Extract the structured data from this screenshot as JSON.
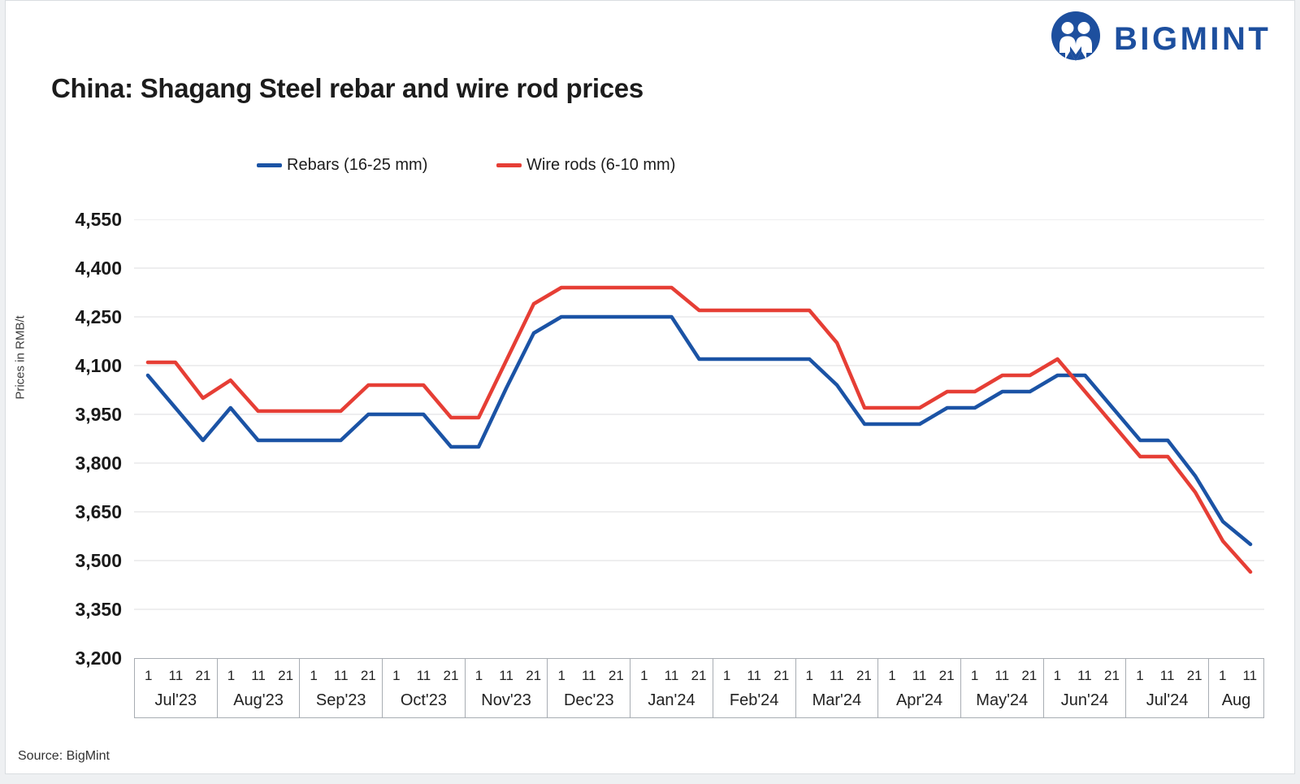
{
  "logo": {
    "text": "BIGMINT",
    "color": "#1d4f9e"
  },
  "title": "China: Shagang Steel rebar and wire rod prices",
  "legend": [
    {
      "label": "Rebars (16-25 mm)",
      "color": "#1b53a5"
    },
    {
      "label": "Wire rods (6-10 mm)",
      "color": "#e63e35"
    }
  ],
  "y_axis": {
    "title": "Prices in RMB/t",
    "tick_labels": [
      "4,550",
      "4,400",
      "4,250",
      "4,100",
      "3,950",
      "3,800",
      "3,650",
      "3,500",
      "3,350",
      "3,200"
    ]
  },
  "source": "Source: BigMint",
  "chart_data": {
    "type": "line",
    "unit": "RMB/t",
    "ylim": [
      3200,
      4550
    ],
    "y_step": 150,
    "grid": true,
    "legend_position": "top",
    "months": [
      {
        "label": "Jul'23",
        "ticks": [
          "1",
          "11",
          "21"
        ]
      },
      {
        "label": "Aug'23",
        "ticks": [
          "1",
          "11",
          "21"
        ]
      },
      {
        "label": "Sep'23",
        "ticks": [
          "1",
          "11",
          "21"
        ]
      },
      {
        "label": "Oct'23",
        "ticks": [
          "1",
          "11",
          "21"
        ]
      },
      {
        "label": "Nov'23",
        "ticks": [
          "1",
          "11",
          "21"
        ]
      },
      {
        "label": "Dec'23",
        "ticks": [
          "1",
          "11",
          "21"
        ]
      },
      {
        "label": "Jan'24",
        "ticks": [
          "1",
          "11",
          "21"
        ]
      },
      {
        "label": "Feb'24",
        "ticks": [
          "1",
          "11",
          "21"
        ]
      },
      {
        "label": "Mar'24",
        "ticks": [
          "1",
          "11",
          "21"
        ]
      },
      {
        "label": "Apr'24",
        "ticks": [
          "1",
          "11",
          "21"
        ]
      },
      {
        "label": "May'24",
        "ticks": [
          "1",
          "11",
          "21"
        ]
      },
      {
        "label": "Jun'24",
        "ticks": [
          "1",
          "11",
          "21"
        ]
      },
      {
        "label": "Jul'24",
        "ticks": [
          "1",
          "11",
          "21"
        ]
      },
      {
        "label": "Aug",
        "ticks": [
          "1",
          "11"
        ]
      }
    ],
    "series": [
      {
        "name": "Rebars (16-25 mm)",
        "color": "#1b53a5",
        "values": [
          4070,
          3970,
          3870,
          3970,
          3870,
          3870,
          3870,
          3870,
          3950,
          3950,
          3950,
          3850,
          3850,
          4030,
          4200,
          4250,
          4250,
          4250,
          4250,
          4250,
          4120,
          4120,
          4120,
          4120,
          4120,
          4040,
          3920,
          3920,
          3920,
          3970,
          3970,
          4020,
          4020,
          4070,
          4070,
          3970,
          3870,
          3870,
          3760,
          3620,
          3550
        ]
      },
      {
        "name": "Wire rods (6-10 mm)",
        "color": "#e63e35",
        "values": [
          4110,
          4110,
          4000,
          4055,
          3960,
          3960,
          3960,
          3960,
          4040,
          4040,
          4040,
          3940,
          3940,
          4115,
          4290,
          4340,
          4340,
          4340,
          4340,
          4340,
          4270,
          4270,
          4270,
          4270,
          4270,
          4170,
          3970,
          3970,
          3970,
          4020,
          4020,
          4070,
          4070,
          4120,
          4020,
          3920,
          3820,
          3820,
          3710,
          3560,
          3465
        ]
      }
    ]
  }
}
